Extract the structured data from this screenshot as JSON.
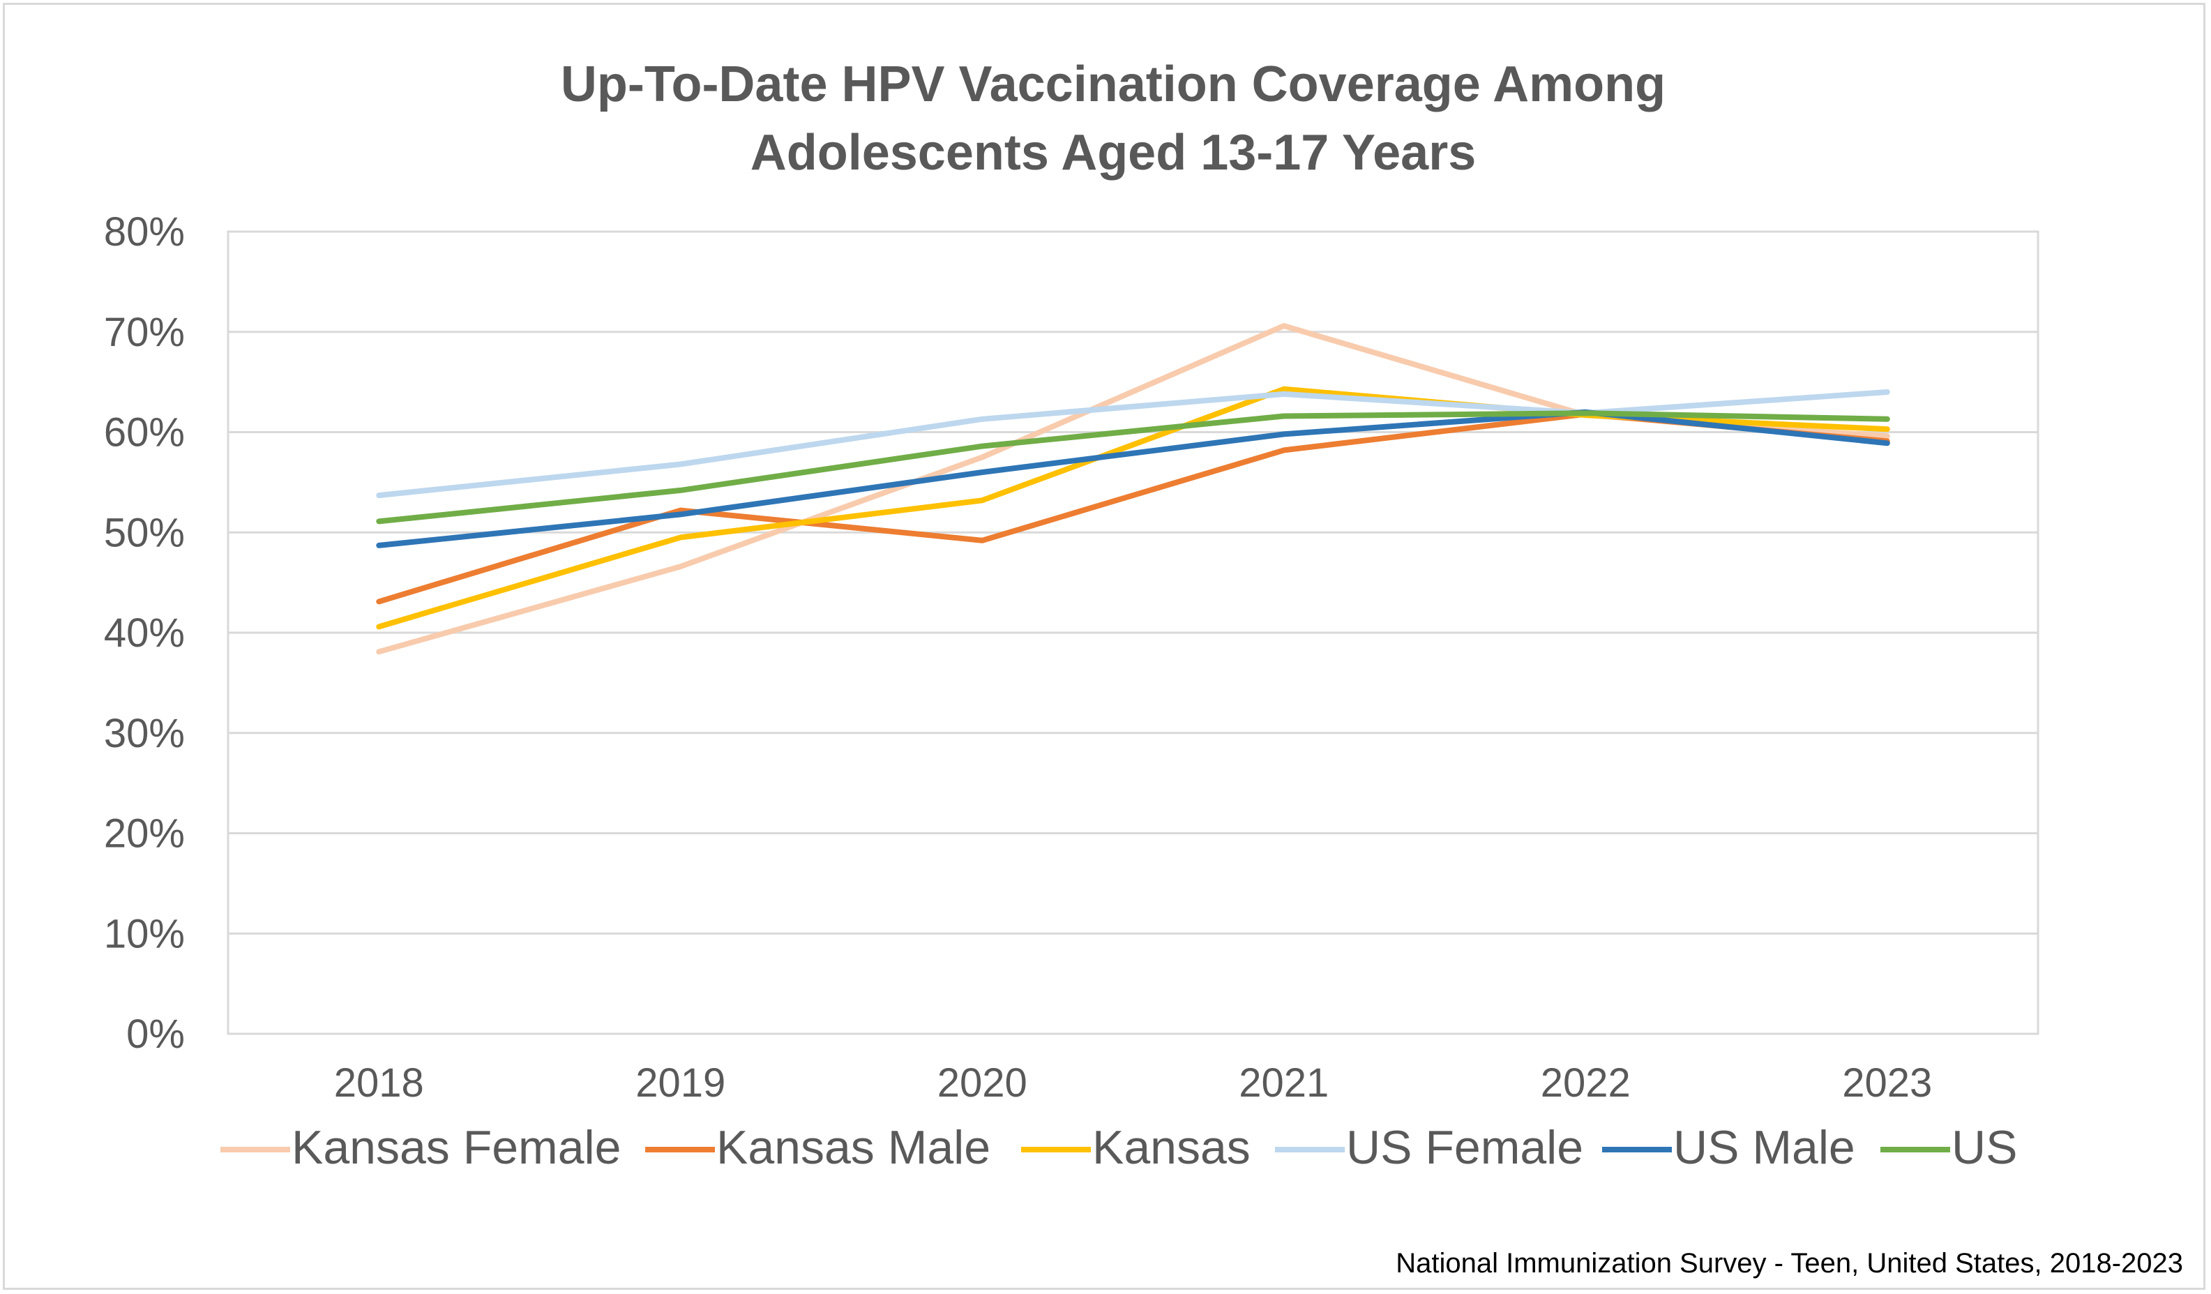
{
  "chart_data": {
    "type": "line",
    "title_lines": [
      "Up-To-Date HPV Vaccination Coverage Among",
      "Adolescents Aged 13-17 Years"
    ],
    "categories": [
      "2018",
      "2019",
      "2020",
      "2021",
      "2022",
      "2023"
    ],
    "y_ticks": [
      "0%",
      "10%",
      "20%",
      "30%",
      "40%",
      "50%",
      "60%",
      "70%",
      "80%"
    ],
    "ylim": [
      0,
      80
    ],
    "y_unit": "%",
    "grid": "horizontal",
    "legend_position": "bottom",
    "series": [
      {
        "name": "Kansas Female",
        "color": "#f8cbad",
        "values": [
          38.1,
          46.6,
          57.5,
          70.6,
          61.7,
          59.6
        ]
      },
      {
        "name": "Kansas Male",
        "color": "#ed7d31",
        "values": [
          43.1,
          52.2,
          49.2,
          58.2,
          61.8,
          59.1
        ]
      },
      {
        "name": "Kansas",
        "color": "#ffc000",
        "values": [
          40.6,
          49.5,
          53.2,
          64.3,
          61.7,
          60.3
        ]
      },
      {
        "name": "US Female",
        "color": "#bdd7ee",
        "values": [
          53.7,
          56.8,
          61.3,
          63.8,
          61.9,
          64.0
        ]
      },
      {
        "name": "US Male",
        "color": "#2e75b6",
        "values": [
          48.7,
          51.8,
          56.0,
          59.8,
          62.0,
          58.9
        ]
      },
      {
        "name": "US",
        "color": "#70ad47",
        "values": [
          51.1,
          54.2,
          58.6,
          61.6,
          61.9,
          61.3
        ]
      }
    ]
  },
  "source_note": "National Immunization Survey - Teen, United States, 2018-2023"
}
